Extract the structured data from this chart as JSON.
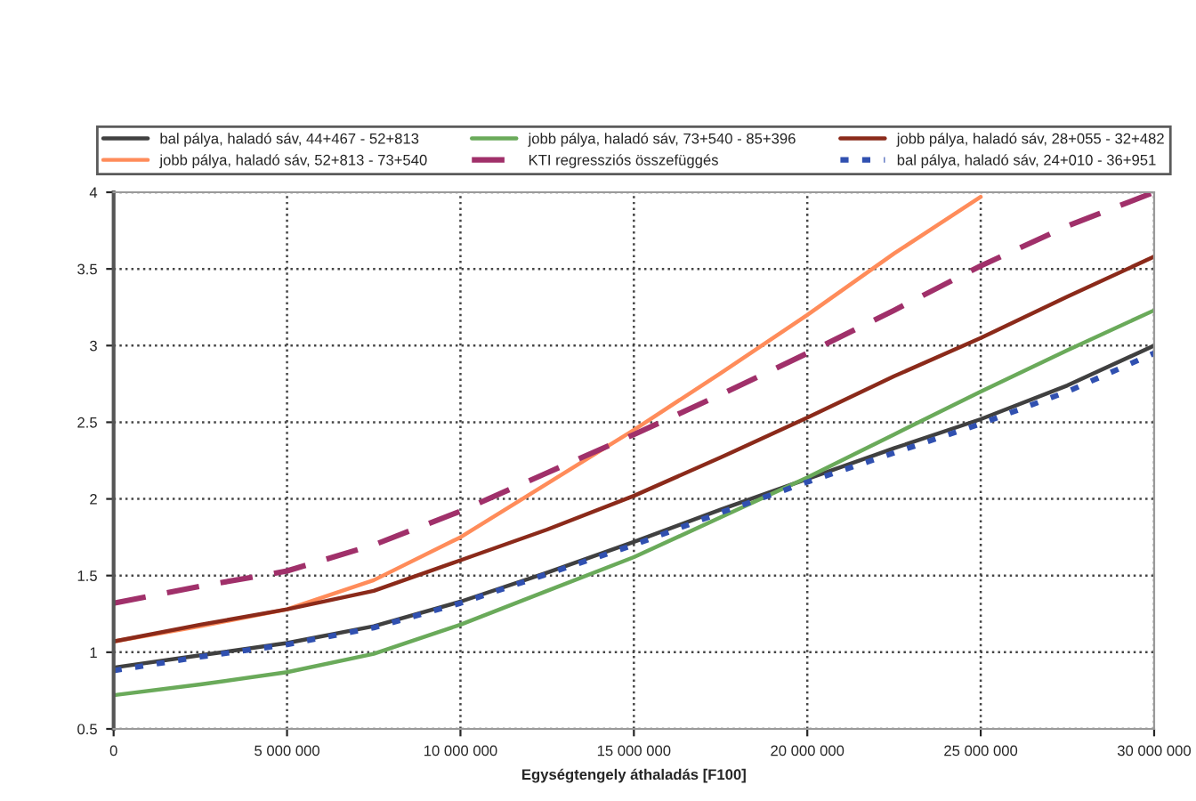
{
  "chart_data": {
    "type": "line",
    "xlabel": "Egységtengely áthaladás [F100]",
    "x": [
      0,
      2500000,
      5000000,
      7500000,
      10000000,
      12500000,
      15000000,
      17500000,
      20000000,
      22500000,
      25000000,
      27500000,
      30000000
    ],
    "series": [
      {
        "name": "bal pálya, haladó sáv, 44+467 - 52+813",
        "color": "#404040",
        "line_style": "solid",
        "values": [
          0.9,
          0.98,
          1.06,
          1.17,
          1.33,
          1.52,
          1.72,
          1.93,
          2.13,
          2.33,
          2.52,
          2.74,
          3.0
        ]
      },
      {
        "name": "jobb pálya, haladó sáv, 52+813 - 73+540",
        "color": "#ff8c5a",
        "line_style": "solid",
        "values": [
          1.07,
          1.17,
          1.28,
          1.47,
          1.75,
          2.1,
          2.45,
          2.82,
          3.2,
          3.6,
          3.97,
          null,
          null
        ]
      },
      {
        "name": "jobb pálya, haladó sáv, 73+540 - 85+396",
        "color": "#6aaa5a",
        "line_style": "solid",
        "values": [
          0.72,
          0.79,
          0.87,
          0.99,
          1.18,
          1.4,
          1.62,
          1.88,
          2.14,
          2.42,
          2.7,
          2.97,
          3.23
        ]
      },
      {
        "name": "KTI regressziós összefüggés",
        "color": "#a0306a",
        "line_style": "dashed",
        "values": [
          1.32,
          1.43,
          1.53,
          1.7,
          1.92,
          2.17,
          2.42,
          2.68,
          2.95,
          3.23,
          3.52,
          3.78,
          4.0
        ]
      },
      {
        "name": "jobb pálya, haladó sáv, 28+055 - 32+482",
        "color": "#8b2a1a",
        "line_style": "solid",
        "values": [
          1.07,
          1.18,
          1.28,
          1.4,
          1.6,
          1.8,
          2.02,
          2.27,
          2.53,
          2.8,
          3.05,
          3.32,
          3.58
        ]
      },
      {
        "name": "bal pálya, haladó sáv, 24+010 - 36+951",
        "color": "#3050b0",
        "line_style": "dotted",
        "values": [
          0.88,
          0.97,
          1.05,
          1.16,
          1.32,
          1.51,
          1.7,
          1.91,
          2.11,
          2.3,
          2.49,
          2.7,
          2.95
        ]
      }
    ],
    "xlim": [
      0,
      30000000
    ],
    "xticks": [
      0,
      {
        "value": 5000000,
        "label": "5 000 000"
      },
      {
        "value": 10000000,
        "label": "10 000 000"
      },
      {
        "value": 15000000,
        "label": "15 000 000"
      },
      {
        "value": 20000000,
        "label": "20 000 000"
      },
      {
        "value": 25000000,
        "label": "25 000 000"
      },
      {
        "value": 30000000,
        "label": "30 000 000"
      }
    ],
    "ylim": [
      0.5,
      4
    ],
    "yticks": [
      0.5,
      1,
      1.5,
      2,
      2.5,
      3,
      3.5,
      4
    ],
    "grid": true,
    "legend": "top",
    "marker": "none"
  }
}
